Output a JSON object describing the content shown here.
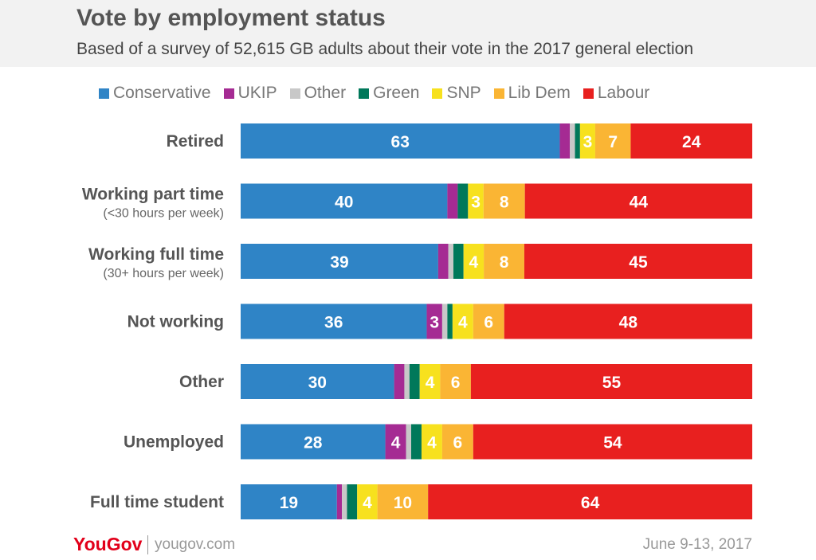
{
  "header": {
    "title": "Vote by employment status",
    "subtitle": "Based of a survey of 52,615 GB adults about their vote in the 2017 general election"
  },
  "footer": {
    "brand": "YouGov",
    "url": "yougov.com",
    "date": "June 9-13, 2017"
  },
  "chart_data": {
    "type": "bar",
    "orientation": "horizontal",
    "stacked": true,
    "title": "Vote by employment status",
    "subtitle": "Based of a survey of 52,615 GB adults about their vote in the 2017 general election",
    "xlim": [
      0,
      100
    ],
    "legend_position": "top",
    "categories": [
      {
        "name": "Retired",
        "sub": ""
      },
      {
        "name": "Working part time",
        "sub": "(<30 hours per week)"
      },
      {
        "name": "Working full time",
        "sub": "(30+ hours per week)"
      },
      {
        "name": "Not working",
        "sub": ""
      },
      {
        "name": "Other",
        "sub": ""
      },
      {
        "name": "Unemployed",
        "sub": ""
      },
      {
        "name": "Full time student",
        "sub": ""
      }
    ],
    "series": [
      {
        "name": "Conservative",
        "color": "#2f84c6",
        "values": [
          63,
          40,
          39,
          36,
          30,
          28,
          19
        ],
        "labels": [
          "63",
          "40",
          "39",
          "36",
          "30",
          "28",
          "19"
        ]
      },
      {
        "name": "UKIP",
        "color": "#a52b93",
        "values": [
          2,
          2,
          2,
          3,
          2,
          4,
          1
        ],
        "labels": [
          "",
          "",
          "",
          "3",
          "",
          "4",
          ""
        ]
      },
      {
        "name": "Other",
        "color": "#c8c8c8",
        "values": [
          1,
          0,
          1,
          1,
          1,
          1,
          1
        ],
        "labels": [
          "",
          "",
          "",
          "",
          "",
          "",
          ""
        ]
      },
      {
        "name": "Green",
        "color": "#00785a",
        "values": [
          1,
          2,
          2,
          1,
          2,
          2,
          2
        ],
        "labels": [
          "",
          "",
          "",
          "",
          "",
          "",
          ""
        ]
      },
      {
        "name": "SNP",
        "color": "#f7e11e",
        "values": [
          3,
          3,
          4,
          4,
          4,
          4,
          4
        ],
        "labels": [
          "3",
          "3",
          "4",
          "4",
          "4",
          "4",
          "4"
        ]
      },
      {
        "name": "Lib Dem",
        "color": "#fab534",
        "values": [
          7,
          8,
          8,
          6,
          6,
          6,
          10
        ],
        "labels": [
          "7",
          "8",
          "8",
          "6",
          "6",
          "6",
          "10"
        ]
      },
      {
        "name": "Labour",
        "color": "#e8201f",
        "values": [
          24,
          44,
          45,
          48,
          55,
          54,
          64
        ],
        "labels": [
          "24",
          "44",
          "45",
          "48",
          "55",
          "54",
          "64"
        ]
      }
    ]
  }
}
